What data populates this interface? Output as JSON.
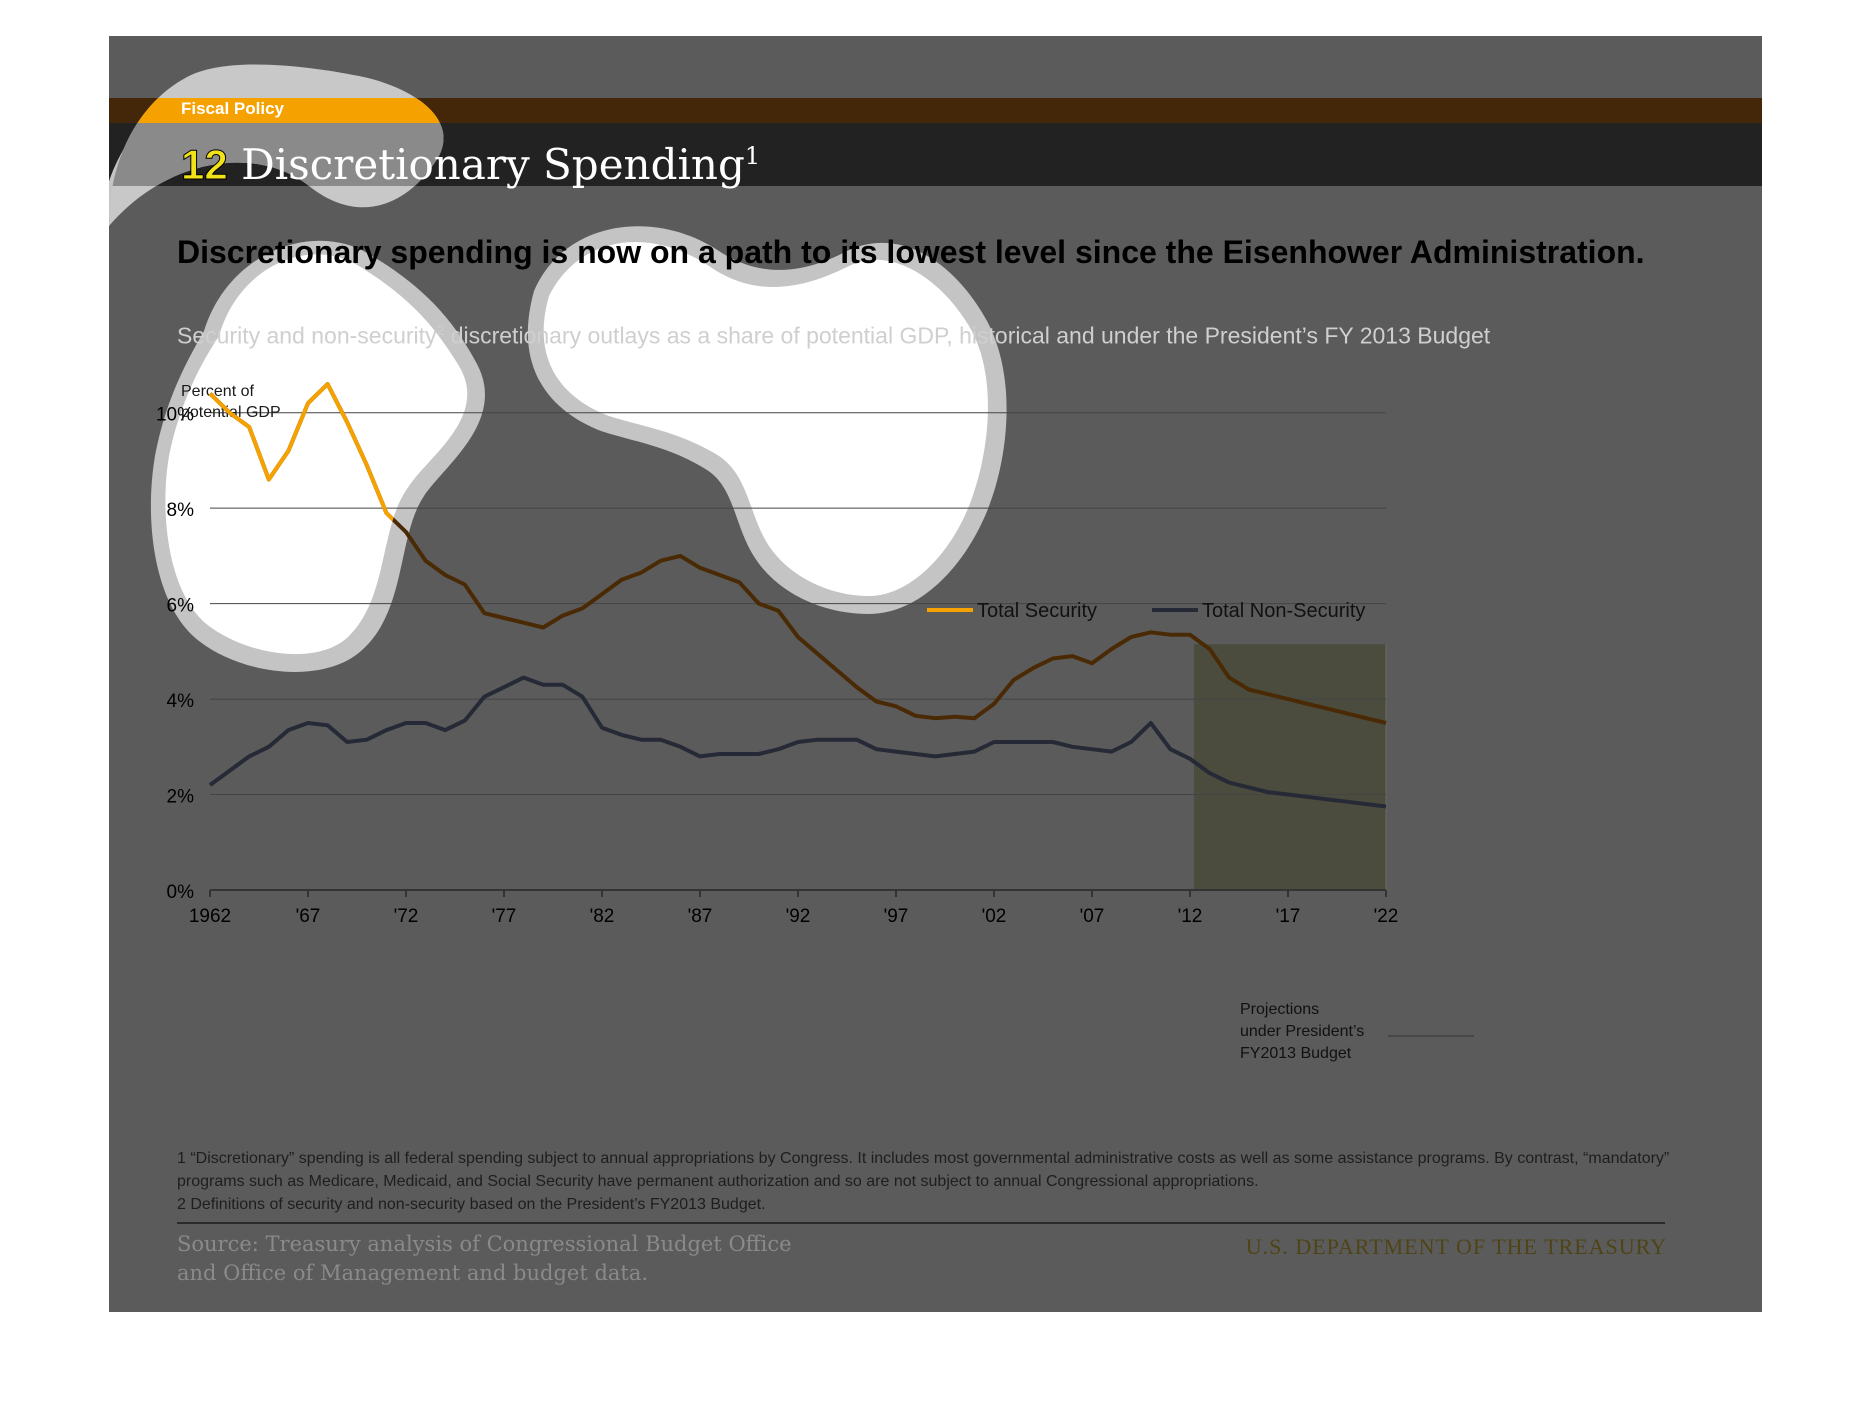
{
  "header": {
    "section": "Fiscal Policy",
    "number": "12",
    "title": "Discretionary Spending",
    "title_sup": "1"
  },
  "headline": "Discretionary spending is now on a path to its lowest level since the Eisenhower Administration.",
  "subhead": {
    "part1": "Security and non-security",
    "sup": "2",
    "part2": " discretionary outlays as a share of potential GDP, historical and under the President’s FY 2013 Budget"
  },
  "colors": {
    "slide_background": "#5b5b5b",
    "header_bar": "#222222",
    "accent_bar": "#432708",
    "section_band": "#f5a100",
    "security_line": "#f5a100",
    "security_line_dimmed": "#4a2a05",
    "non_security_line": "#262a36",
    "projection_shade": "#4b4c3d",
    "gridline": "#444444",
    "blob_light": "#ffffff",
    "blob_outline": "#c4c4c4"
  },
  "chart_data": {
    "type": "line",
    "ylabel": "Percent of potential GDP",
    "ylim": [
      0,
      11
    ],
    "yticks": [
      0,
      2,
      4,
      6,
      8,
      10
    ],
    "ytick_labels": [
      "0%",
      "2%",
      "4%",
      "6%",
      "8%",
      "10%"
    ],
    "xlim": [
      1962,
      2022
    ],
    "xticks": [
      1962,
      1967,
      1972,
      1977,
      1982,
      1987,
      1992,
      1997,
      2002,
      2007,
      2012,
      2017,
      2022
    ],
    "xtick_labels": [
      "1962",
      "'67",
      "'72",
      "'77",
      "'82",
      "'87",
      "'92",
      "'97",
      "'02",
      "'07",
      "'12",
      "'17",
      "'22"
    ],
    "grid": true,
    "legend_position": "upper-right",
    "x": [
      1962,
      1963,
      1964,
      1965,
      1966,
      1967,
      1968,
      1969,
      1970,
      1971,
      1972,
      1973,
      1974,
      1975,
      1976,
      1977,
      1978,
      1979,
      1980,
      1981,
      1982,
      1983,
      1984,
      1985,
      1986,
      1987,
      1988,
      1989,
      1990,
      1991,
      1992,
      1993,
      1994,
      1995,
      1996,
      1997,
      1998,
      1999,
      2000,
      2001,
      2002,
      2003,
      2004,
      2005,
      2006,
      2007,
      2008,
      2009,
      2010,
      2011,
      2012,
      2013,
      2014,
      2015,
      2016,
      2017,
      2018,
      2019,
      2020,
      2021,
      2022
    ],
    "series": [
      {
        "name": "Total Security",
        "color": "#f5a100",
        "values": [
          10.4,
          10.0,
          9.7,
          8.6,
          9.2,
          10.2,
          10.6,
          9.8,
          8.9,
          7.9,
          7.5,
          6.9,
          6.6,
          6.4,
          5.8,
          5.7,
          5.6,
          5.5,
          5.75,
          5.9,
          6.2,
          6.5,
          6.65,
          6.9,
          7.0,
          6.75,
          6.6,
          6.45,
          6.0,
          5.85,
          5.3,
          4.95,
          4.6,
          4.25,
          3.95,
          3.85,
          3.65,
          3.6,
          3.63,
          3.6,
          3.9,
          4.4,
          4.65,
          4.85,
          4.9,
          4.75,
          5.05,
          5.3,
          5.4,
          5.35,
          5.35,
          5.05,
          4.45,
          4.2,
          4.1,
          4.0,
          3.9,
          3.8,
          3.7,
          3.6,
          3.5
        ]
      },
      {
        "name": "Total Non-Security",
        "color": "#262a36",
        "values": [
          2.2,
          2.5,
          2.8,
          3.0,
          3.35,
          3.5,
          3.45,
          3.1,
          3.15,
          3.35,
          3.5,
          3.5,
          3.35,
          3.55,
          4.05,
          4.25,
          4.45,
          4.3,
          4.3,
          4.05,
          3.4,
          3.25,
          3.15,
          3.15,
          3.0,
          2.8,
          2.85,
          2.85,
          2.85,
          2.95,
          3.1,
          3.15,
          3.15,
          3.15,
          2.95,
          2.9,
          2.85,
          2.8,
          2.85,
          2.9,
          3.1,
          3.1,
          3.1,
          3.1,
          3.0,
          2.95,
          2.9,
          3.1,
          3.5,
          2.95,
          2.75,
          2.45,
          2.25,
          2.15,
          2.05,
          2.0,
          1.95,
          1.9,
          1.85,
          1.8,
          1.75
        ]
      }
    ],
    "projection": {
      "start": 2012.2,
      "end": 2022,
      "label_lines": [
        "Projections",
        "under President’s",
        "FY2013 Budget"
      ]
    }
  },
  "footnotes": [
    "1 “Discretionary” spending is all federal spending subject to annual appropriations by Congress. It includes most governmental administrative costs as well as some assistance programs. By contrast, “mandatory” programs such as Medicare, Medicaid, and Social Security have permanent authorization and so are not subject to annual Congressional appropriations.",
    "2 Definitions of security and non-security based on the President’s FY2013 Budget."
  ],
  "source_lines": [
    "Source: Treasury analysis of Congressional Budget Office",
    "and Office of Management and budget data."
  ],
  "department": "U.S. DEPARTMENT OF THE TREASURY"
}
